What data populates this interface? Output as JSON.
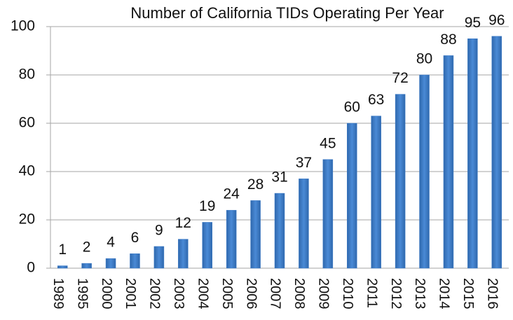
{
  "chart_data": {
    "type": "bar",
    "title": "Number of California TIDs Operating Per Year",
    "categories": [
      "1989",
      "1995",
      "2000",
      "2001",
      "2002",
      "2003",
      "2004",
      "2005",
      "2006",
      "2007",
      "2008",
      "2009",
      "2010",
      "2011",
      "2012",
      "2013",
      "2014",
      "2015",
      "2016"
    ],
    "values": [
      1,
      2,
      4,
      6,
      9,
      12,
      19,
      24,
      28,
      31,
      37,
      45,
      60,
      63,
      72,
      80,
      88,
      95,
      96
    ],
    "color": "#3d7cc9",
    "ylim": [
      0,
      100
    ],
    "yticks": [
      0,
      20,
      40,
      60,
      80,
      100
    ],
    "grid": true
  }
}
